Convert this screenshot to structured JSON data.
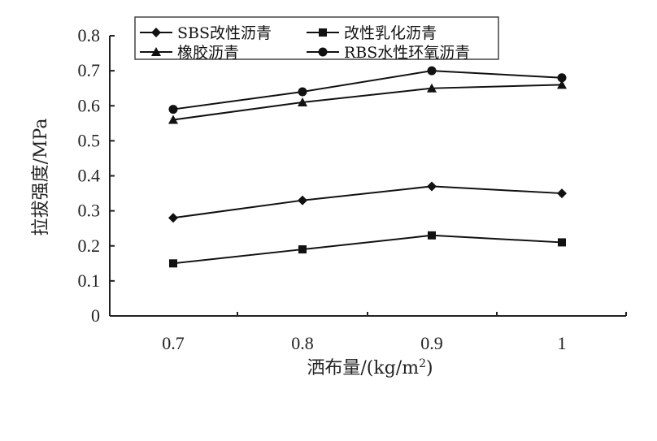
{
  "chart_data": {
    "type": "line",
    "title": "",
    "xlabel": "洒布量/(kg/m²)",
    "xlabel_main": "洒布量/(kg/m",
    "xlabel_sup": "2",
    "xlabel_tail": ")",
    "ylabel": "拉拔强度/MPa",
    "categories": [
      "0.7",
      "0.8",
      "0.9",
      "1"
    ],
    "ylim": [
      0,
      0.8
    ],
    "yticks": [
      "0",
      "0.1",
      "0.2",
      "0.3",
      "0.4",
      "0.5",
      "0.6",
      "0.7",
      "0.8"
    ],
    "grid": false,
    "legend_position": "top-inside",
    "series": [
      {
        "name": "SBS改性沥青",
        "marker": "diamond",
        "values": [
          0.28,
          0.33,
          0.37,
          0.35
        ]
      },
      {
        "name": "改性乳化沥青",
        "marker": "square",
        "values": [
          0.15,
          0.19,
          0.23,
          0.21
        ]
      },
      {
        "name": "橡胶沥青",
        "marker": "triangle",
        "values": [
          0.56,
          0.61,
          0.65,
          0.66
        ]
      },
      {
        "name": "RBS水性环氧沥青",
        "marker": "circle",
        "values": [
          0.59,
          0.64,
          0.7,
          0.68
        ]
      }
    ],
    "colors": {
      "line": "#111111",
      "axis": "#222222",
      "legend_border": "#444444"
    }
  }
}
